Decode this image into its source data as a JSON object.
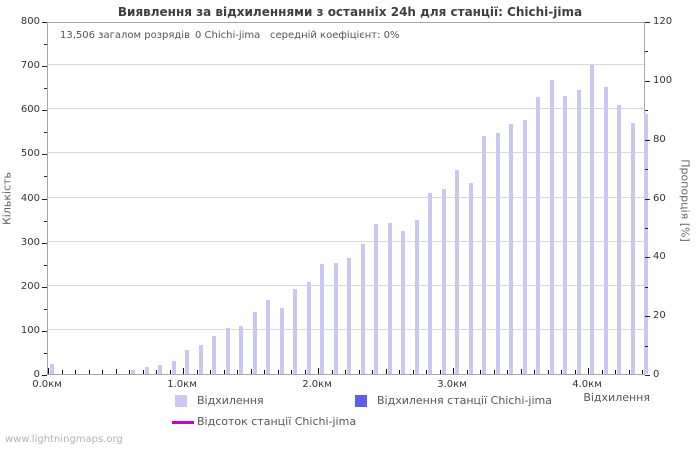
{
  "header": {
    "title": "Виявлення за відхиленнями з останніх 24h для станції: Chichi-jima"
  },
  "annotation": {
    "total_strikes": "13,506 загалом розрядів",
    "station_count": "0 Chichi-jima",
    "avg_coefficient": "середній коефіцієнт: 0%"
  },
  "legend": {
    "deviation": "Відхилення",
    "station_deviation": "Відхилення станції Chichi-jima",
    "station_percent": "Відсоток станції Chichi-jima"
  },
  "footer": {
    "watermark": "www.lightningmaps.org"
  },
  "colors": {
    "bar": "#c8c8f2",
    "station_bar": "#5f5fee",
    "percent_line": "#cc00cc",
    "grid": "#d9d9d9",
    "plot_border": "#a8a8a8"
  },
  "chart_data": {
    "type": "bar",
    "title": "Виявлення за відхиленнями з останніх 24h для станції: Chichi-jima",
    "xlabel": "Відхилення",
    "ylabel_left": "Кількість",
    "ylabel_right": "Пропорція [%]",
    "grid": "horizontal",
    "legend_position": "bottom",
    "axes": {
      "left": {
        "label": "Кількість",
        "min": 0,
        "max": 800,
        "major": 100,
        "minor": 50
      },
      "right": {
        "label": "Пропорція [%]",
        "min": 0,
        "max": 120,
        "major": 20,
        "minor": 10
      },
      "x": {
        "label": "Відхилення",
        "unit": "км",
        "bin_km": 0.1,
        "min": 0.0,
        "max": 4.43
      }
    },
    "x_tick_labels": [
      "0.0км",
      "1.0км",
      "2.0км",
      "3.0км",
      "4.0км"
    ],
    "categories_km": [
      0.0,
      0.1,
      0.2,
      0.3,
      0.4,
      0.5,
      0.6,
      0.7,
      0.8,
      0.9,
      1.0,
      1.1,
      1.2,
      1.3,
      1.4,
      1.5,
      1.6,
      1.7,
      1.8,
      1.9,
      2.0,
      2.1,
      2.2,
      2.3,
      2.4,
      2.5,
      2.6,
      2.7,
      2.8,
      2.9,
      3.0,
      3.1,
      3.2,
      3.3,
      3.4,
      3.5,
      3.6,
      3.7,
      3.8,
      3.9,
      4.0,
      4.1,
      4.2,
      4.3,
      4.4
    ],
    "series": [
      {
        "name": "Відхилення",
        "type": "bar",
        "axis": "left",
        "color": "#c8c8f2",
        "values": [
          22,
          0,
          0,
          0,
          0,
          0,
          10,
          15,
          20,
          30,
          55,
          65,
          87,
          105,
          108,
          140,
          167,
          150,
          193,
          208,
          249,
          252,
          262,
          295,
          340,
          343,
          324,
          348,
          410,
          419,
          462,
          434,
          540,
          547,
          566,
          576,
          627,
          667,
          630,
          644,
          701,
          650,
          609,
          570,
          589
        ]
      },
      {
        "name": "Відхилення станції Chichi-jima",
        "type": "bar",
        "axis": "left",
        "color": "#5f5fee",
        "values": [
          0,
          0,
          0,
          0,
          0,
          0,
          0,
          0,
          0,
          0,
          0,
          0,
          0,
          0,
          0,
          0,
          0,
          0,
          0,
          0,
          0,
          0,
          0,
          0,
          0,
          0,
          0,
          0,
          0,
          0,
          0,
          0,
          0,
          0,
          0,
          0,
          0,
          0,
          0,
          0,
          0,
          0,
          0,
          0,
          0
        ]
      },
      {
        "name": "Відсоток станції Chichi-jima",
        "type": "line",
        "axis": "right",
        "color": "#cc00cc",
        "values": [
          0,
          0,
          0,
          0,
          0,
          0,
          0,
          0,
          0,
          0,
          0,
          0,
          0,
          0,
          0,
          0,
          0,
          0,
          0,
          0,
          0,
          0,
          0,
          0,
          0,
          0,
          0,
          0,
          0,
          0,
          0,
          0,
          0,
          0,
          0,
          0,
          0,
          0,
          0,
          0,
          0,
          0,
          0,
          0,
          0
        ]
      }
    ]
  }
}
